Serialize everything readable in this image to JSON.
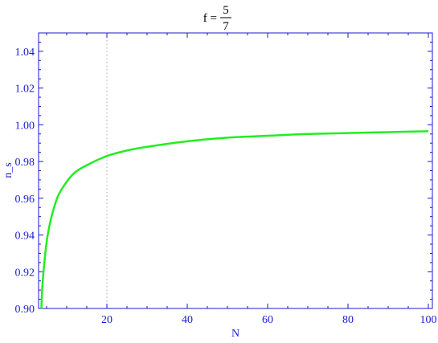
{
  "chart_data": {
    "type": "line",
    "title_lhs": "f =",
    "title_numerator": "5",
    "title_denominator": "7",
    "xlabel": "N",
    "ylabel": "n_s",
    "xlim": [
      3,
      101
    ],
    "ylim": [
      0.9,
      1.05
    ],
    "x_ticks": [
      20,
      40,
      60,
      80,
      100
    ],
    "x_tick_labels": [
      "20",
      "40",
      "60",
      "80",
      "100"
    ],
    "y_ticks": [
      0.9,
      0.92,
      0.94,
      0.96,
      0.98,
      1.0,
      1.02,
      1.04
    ],
    "y_tick_labels": [
      "0.90",
      "0.92",
      "0.94",
      "0.96",
      "0.98",
      "1.00",
      "1.02",
      "1.04"
    ],
    "reference_line_x": 20,
    "grid": false,
    "series": [
      {
        "color": "#22ee22",
        "x": [
          3.7,
          4,
          5,
          6,
          7,
          8,
          10,
          12,
          15,
          20,
          25,
          30,
          40,
          50,
          60,
          70,
          80,
          90,
          100
        ],
        "y": [
          0.9,
          0.914,
          0.936,
          0.948,
          0.956,
          0.962,
          0.969,
          0.974,
          0.978,
          0.983,
          0.986,
          0.988,
          0.991,
          0.993,
          0.994,
          0.995,
          0.9955,
          0.996,
          0.9965
        ]
      }
    ],
    "colors": {
      "axis": "#1a1ad6",
      "curve": "#22ee22",
      "reference": "#aaaaaa"
    }
  }
}
